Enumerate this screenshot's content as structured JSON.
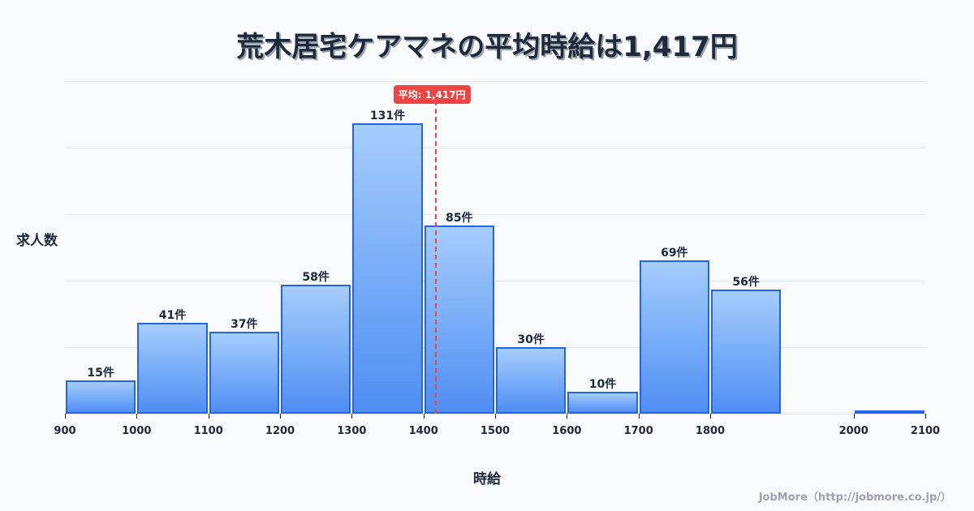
{
  "title": "荒木居宅ケアマネの平均時給は1,417円",
  "average": {
    "label": "平均: 1,417円",
    "value": 1417
  },
  "y_axis_label": "求人数",
  "x_axis_label": "時給",
  "footer": "JobMore（http://jobmore.co.jp/）",
  "colors": {
    "bar_fill_top": "#a5cdfc",
    "bar_fill_bottom": "#4f8ef3",
    "bar_border": "#2563eb",
    "average": "#ef4444",
    "text": "#1e293b",
    "grid": "#e2e8f0"
  },
  "chart_data": {
    "type": "bar",
    "title": "荒木居宅ケアマネの平均時給は1,417円",
    "xlabel": "時給",
    "ylabel": "求人数",
    "bins": [
      {
        "start": 900,
        "end": 1000,
        "count": 15,
        "label": "15件"
      },
      {
        "start": 1000,
        "end": 1100,
        "count": 41,
        "label": "41件"
      },
      {
        "start": 1100,
        "end": 1200,
        "count": 37,
        "label": "37件"
      },
      {
        "start": 1200,
        "end": 1300,
        "count": 58,
        "label": "58件"
      },
      {
        "start": 1300,
        "end": 1400,
        "count": 131,
        "label": "131件"
      },
      {
        "start": 1400,
        "end": 1500,
        "count": 85,
        "label": "85件"
      },
      {
        "start": 1500,
        "end": 1600,
        "count": 30,
        "label": "30件"
      },
      {
        "start": 1600,
        "end": 1700,
        "count": 10,
        "label": "10件"
      },
      {
        "start": 1700,
        "end": 1800,
        "count": 69,
        "label": "69件"
      },
      {
        "start": 1800,
        "end": 1900,
        "count": 56,
        "label": "56件"
      },
      {
        "start": 2000,
        "end": 2100,
        "count": 1,
        "label": ""
      }
    ],
    "x_ticks": [
      "900",
      "1000",
      "1100",
      "1200",
      "1300",
      "1400",
      "1500",
      "1600",
      "1700",
      "1800",
      "2000",
      "2100"
    ],
    "xlim": [
      900,
      2100
    ],
    "ylim": [
      0,
      150
    ],
    "grid": true,
    "annotations": [
      {
        "type": "vline",
        "x": 1417,
        "label": "平均: 1,417円",
        "style": "dashed red"
      }
    ],
    "legend": null
  }
}
